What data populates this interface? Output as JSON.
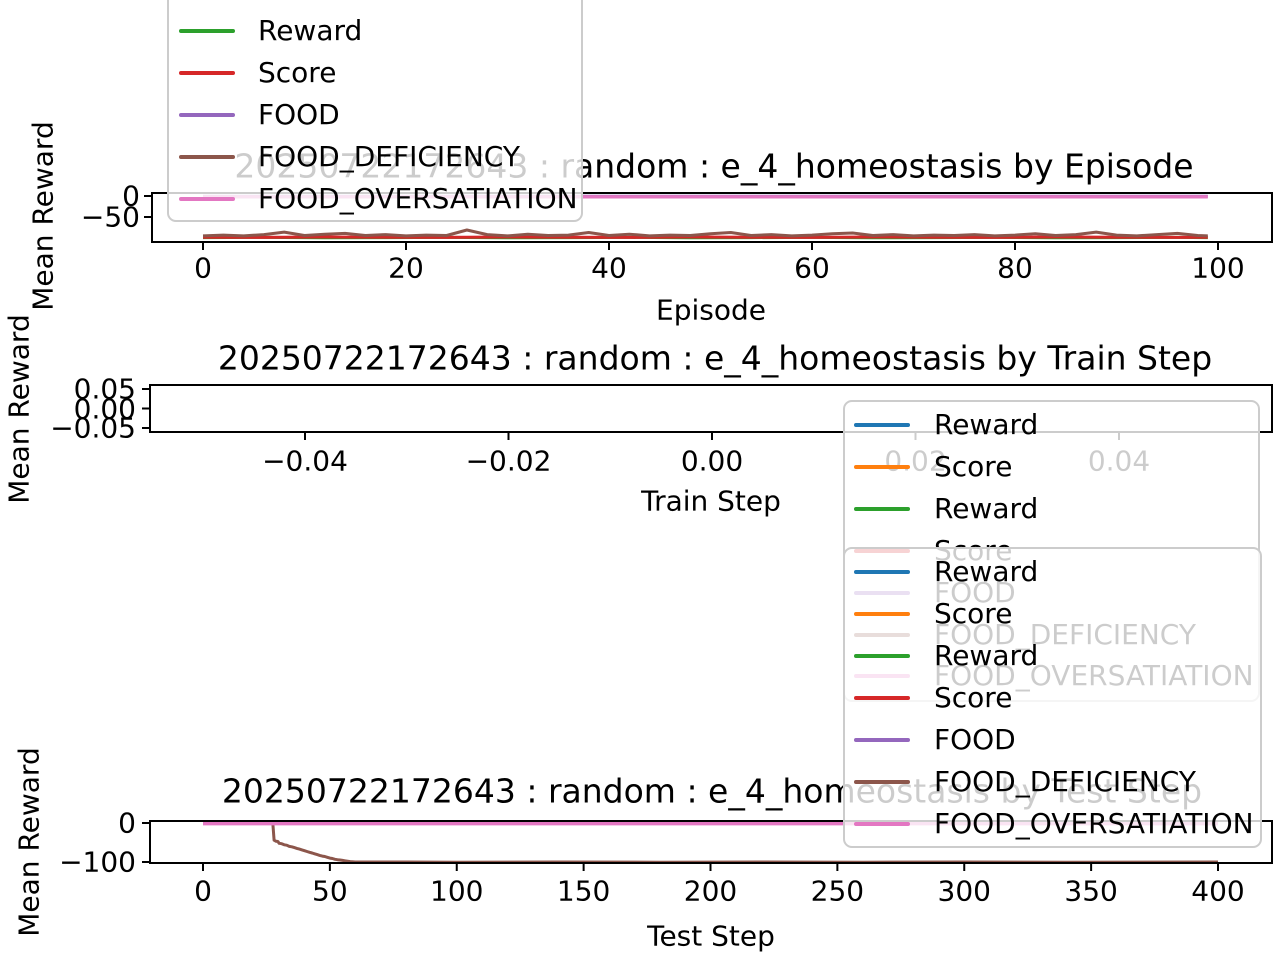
{
  "figure": {
    "background": "#ffffff"
  },
  "palette": {
    "blue": "#1f77b4",
    "orange": "#ff7f0e",
    "green": "#2ca02c",
    "red": "#d62728",
    "purple": "#9467bd",
    "brown": "#8c564b",
    "pink": "#e377c2",
    "axis": "#000000",
    "legend_border": "#cccccc"
  },
  "chart_data": [
    {
      "type": "line",
      "title": "20250722172643 : random : e_4_homeostasis by Episode",
      "xlabel": "Episode",
      "ylabel": "Mean Reward",
      "xlim": [
        -5,
        105
      ],
      "ylim": [
        -110,
        6
      ],
      "grid": false,
      "xticks": [
        {
          "v": 0,
          "label": "0"
        },
        {
          "v": 20,
          "label": "20"
        },
        {
          "v": 40,
          "label": "40"
        },
        {
          "v": 60,
          "label": "60"
        },
        {
          "v": 80,
          "label": "80"
        },
        {
          "v": 100,
          "label": "100"
        }
      ],
      "yticks": [
        {
          "v": 0,
          "label": "0"
        },
        {
          "v": -50,
          "label": "−50"
        }
      ],
      "series": [
        {
          "name": "Reward",
          "color": "#2ca02c",
          "width": 3,
          "points": [
            [
              0,
              -99
            ],
            [
              6,
              -98.5
            ],
            [
              12,
              -99.5
            ],
            [
              18,
              -99
            ],
            [
              24,
              -98.5
            ],
            [
              30,
              -99.5
            ],
            [
              36,
              -99
            ],
            [
              42,
              -98.5
            ],
            [
              48,
              -99.5
            ],
            [
              54,
              -99
            ],
            [
              60,
              -98.5
            ],
            [
              66,
              -99.5
            ],
            [
              72,
              -99
            ],
            [
              78,
              -98.5
            ],
            [
              84,
              -99.5
            ],
            [
              90,
              -99
            ],
            [
              96,
              -98.5
            ],
            [
              99,
              -99
            ]
          ]
        },
        {
          "name": "Score",
          "color": "#d62728",
          "width": 3,
          "points": [
            [
              0,
              -98
            ],
            [
              6,
              -98.6
            ],
            [
              12,
              -97.6
            ],
            [
              18,
              -98.2
            ],
            [
              24,
              -98.6
            ],
            [
              30,
              -97.6
            ],
            [
              36,
              -98.2
            ],
            [
              42,
              -98.6
            ],
            [
              48,
              -97.6
            ],
            [
              54,
              -98.2
            ],
            [
              60,
              -98.6
            ],
            [
              66,
              -97.6
            ],
            [
              72,
              -98.2
            ],
            [
              78,
              -98.6
            ],
            [
              84,
              -97.6
            ],
            [
              90,
              -98.2
            ],
            [
              96,
              -98.6
            ],
            [
              99,
              -98
            ]
          ]
        },
        {
          "name": "FOOD",
          "color": "#9467bd",
          "width": 3,
          "points": [
            [
              0,
              -0.5
            ],
            [
              99,
              -0.5
            ]
          ]
        },
        {
          "name": "FOOD_DEFICIENCY",
          "color": "#8c564b",
          "width": 3,
          "points": [
            [
              0,
              -95
            ],
            [
              2,
              -93
            ],
            [
              4,
              -95
            ],
            [
              6,
              -92
            ],
            [
              8,
              -86
            ],
            [
              10,
              -94
            ],
            [
              12,
              -91
            ],
            [
              14,
              -89
            ],
            [
              16,
              -94
            ],
            [
              18,
              -92
            ],
            [
              20,
              -95
            ],
            [
              22,
              -93
            ],
            [
              24,
              -94
            ],
            [
              26,
              -81
            ],
            [
              28,
              -92
            ],
            [
              30,
              -95
            ],
            [
              32,
              -91
            ],
            [
              34,
              -94
            ],
            [
              36,
              -93
            ],
            [
              38,
              -87
            ],
            [
              40,
              -94
            ],
            [
              42,
              -91
            ],
            [
              44,
              -95
            ],
            [
              46,
              -93
            ],
            [
              48,
              -94
            ],
            [
              50,
              -90
            ],
            [
              52,
              -87
            ],
            [
              54,
              -94
            ],
            [
              56,
              -92
            ],
            [
              58,
              -95
            ],
            [
              60,
              -93
            ],
            [
              62,
              -90
            ],
            [
              64,
              -88
            ],
            [
              66,
              -94
            ],
            [
              68,
              -92
            ],
            [
              70,
              -95
            ],
            [
              72,
              -93
            ],
            [
              74,
              -94
            ],
            [
              76,
              -92
            ],
            [
              78,
              -95
            ],
            [
              80,
              -93
            ],
            [
              82,
              -90
            ],
            [
              84,
              -94
            ],
            [
              86,
              -92
            ],
            [
              88,
              -86
            ],
            [
              90,
              -93
            ],
            [
              92,
              -95
            ],
            [
              94,
              -92
            ],
            [
              96,
              -89
            ],
            [
              98,
              -94
            ],
            [
              99,
              -95
            ]
          ]
        },
        {
          "name": "FOOD_OVERSATIATION",
          "color": "#e377c2",
          "width": 3.4,
          "points": [
            [
              0,
              -2
            ],
            [
              99,
              -2
            ]
          ]
        }
      ]
    },
    {
      "type": "line",
      "title": "20250722172643 : random : e_4_homeostasis by Train Step",
      "xlabel": "Train Step",
      "ylabel": "Mean Reward",
      "xlim": [
        -0.055,
        0.055
      ],
      "ylim": [
        -0.06,
        0.06
      ],
      "grid": false,
      "xticks": [
        {
          "v": -0.04,
          "label": "−0.04"
        },
        {
          "v": -0.02,
          "label": "−0.02"
        },
        {
          "v": 0,
          "label": "0.00"
        },
        {
          "v": 0.02,
          "label": "0.02"
        },
        {
          "v": 0.04,
          "label": "0.04"
        }
      ],
      "yticks": [
        {
          "v": 0.05,
          "label": "0.05"
        },
        {
          "v": 0,
          "label": "0.00"
        },
        {
          "v": -0.05,
          "label": "−0.05"
        }
      ],
      "series": []
    },
    {
      "type": "line",
      "title": "20250722172643 : random : e_4_homeostasis by Test Step",
      "xlabel": "Test Step",
      "ylabel": "Mean Reward",
      "xlim": [
        -20,
        420
      ],
      "ylim": [
        -107,
        5
      ],
      "grid": false,
      "xticks": [
        {
          "v": 0,
          "label": "0"
        },
        {
          "v": 50,
          "label": "50"
        },
        {
          "v": 100,
          "label": "100"
        },
        {
          "v": 150,
          "label": "150"
        },
        {
          "v": 200,
          "label": "200"
        },
        {
          "v": 250,
          "label": "250"
        },
        {
          "v": 300,
          "label": "300"
        },
        {
          "v": 350,
          "label": "350"
        },
        {
          "v": 400,
          "label": "400"
        }
      ],
      "yticks": [
        {
          "v": 0,
          "label": "0"
        },
        {
          "v": -100,
          "label": "−100"
        }
      ],
      "series": [
        {
          "name": "Reward",
          "color": "#1f77b4",
          "width": 3,
          "points": [
            [
              0,
              0.7
            ],
            [
              400,
              0.7
            ]
          ]
        },
        {
          "name": "Score",
          "color": "#ff7f0e",
          "width": 3,
          "points": [
            [
              0,
              0.7
            ],
            [
              400,
              0.7
            ]
          ]
        },
        {
          "name": "Reward",
          "color": "#2ca02c",
          "width": 3,
          "points": [
            [
              0,
              0.7
            ],
            [
              400,
              0.7
            ]
          ]
        },
        {
          "name": "Score",
          "color": "#d62728",
          "width": 3,
          "points": [
            [
              0,
              0.7
            ],
            [
              400,
              0.7
            ]
          ]
        },
        {
          "name": "FOOD",
          "color": "#9467bd",
          "width": 3,
          "points": [
            [
              0,
              0.1
            ],
            [
              400,
              0.1
            ]
          ]
        },
        {
          "name": "FOOD_DEFICIENCY",
          "color": "#8c564b",
          "width": 3,
          "points": [
            [
              0,
              0.7
            ],
            [
              26,
              0.7
            ],
            [
              27.5,
              0
            ],
            [
              28,
              -44
            ],
            [
              28.8,
              -47
            ],
            [
              29.5,
              -47.5
            ],
            [
              30,
              -52
            ],
            [
              31,
              -53
            ],
            [
              32,
              -56
            ],
            [
              33,
              -57
            ],
            [
              34,
              -60
            ],
            [
              35,
              -61
            ],
            [
              36,
              -63
            ],
            [
              37,
              -65
            ],
            [
              38,
              -67
            ],
            [
              39,
              -69
            ],
            [
              40,
              -71
            ],
            [
              41,
              -73
            ],
            [
              42,
              -75
            ],
            [
              43,
              -77
            ],
            [
              44,
              -79
            ],
            [
              45,
              -81
            ],
            [
              46,
              -83
            ],
            [
              47,
              -85
            ],
            [
              48,
              -86
            ],
            [
              49,
              -88
            ],
            [
              50,
              -90
            ],
            [
              51,
              -91
            ],
            [
              52,
              -93
            ],
            [
              53,
              -94
            ],
            [
              54,
              -95
            ],
            [
              55,
              -96
            ],
            [
              56,
              -97
            ],
            [
              58,
              -99
            ],
            [
              60,
              -100
            ],
            [
              80,
              -100
            ],
            [
              100,
              -100.5
            ],
            [
              140,
              -100
            ],
            [
              180,
              -100.5
            ],
            [
              220,
              -100
            ],
            [
              260,
              -100.5
            ],
            [
              300,
              -100
            ],
            [
              340,
              -100.5
            ],
            [
              400,
              -100
            ]
          ]
        },
        {
          "name": "FOOD_OVERSATIATION",
          "color": "#e377c2",
          "width": 3.4,
          "points": [
            [
              0,
              -1.9
            ],
            [
              400,
              -1.9
            ]
          ]
        }
      ]
    }
  ],
  "legends": [
    {
      "id": "legend-episode",
      "entries": [
        {
          "label": "Reward",
          "color": "#2ca02c"
        },
        {
          "label": "Score",
          "color": "#d62728"
        },
        {
          "label": "FOOD",
          "color": "#9467bd"
        },
        {
          "label": "FOOD_DEFICIENCY",
          "color": "#8c564b"
        },
        {
          "label": "FOOD_OVERSATIATION",
          "color": "#e377c2"
        }
      ]
    },
    {
      "id": "legend-train",
      "entries": [
        {
          "label": "Reward",
          "color": "#1f77b4"
        },
        {
          "label": "Score",
          "color": "#ff7f0e"
        },
        {
          "label": "Reward",
          "color": "#2ca02c"
        },
        {
          "label": "Score",
          "color": "#d62728"
        },
        {
          "label": "FOOD",
          "color": "#9467bd"
        },
        {
          "label": "FOOD_DEFICIENCY",
          "color": "#8c564b"
        },
        {
          "label": "FOOD_OVERSATIATION",
          "color": "#e377c2"
        }
      ]
    },
    {
      "id": "legend-test",
      "entries": [
        {
          "label": "Reward",
          "color": "#1f77b4"
        },
        {
          "label": "Score",
          "color": "#ff7f0e"
        },
        {
          "label": "Reward",
          "color": "#2ca02c"
        },
        {
          "label": "Score",
          "color": "#d62728"
        },
        {
          "label": "FOOD",
          "color": "#9467bd"
        },
        {
          "label": "FOOD_DEFICIENCY",
          "color": "#8c564b"
        },
        {
          "label": "FOOD_OVERSATIATION",
          "color": "#e377c2"
        }
      ]
    }
  ]
}
